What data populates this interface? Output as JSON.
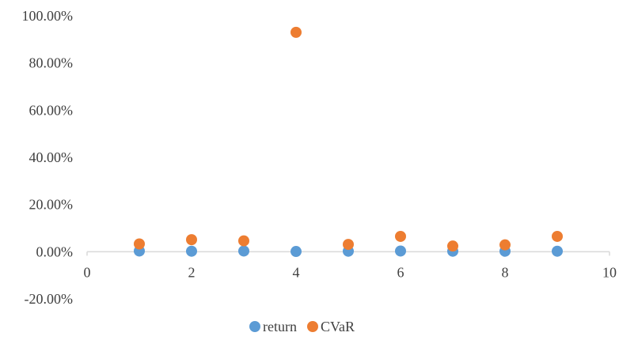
{
  "chart_data": {
    "type": "scatter",
    "title": "",
    "xlabel": "",
    "ylabel": "",
    "xlim": [
      0,
      10
    ],
    "ylim": [
      -0.2,
      1.0
    ],
    "x_ticks": [
      0,
      2,
      4,
      6,
      8,
      10
    ],
    "y_ticks": [
      -0.2,
      0.0,
      0.2,
      0.4,
      0.6,
      0.8,
      1.0
    ],
    "x_tick_labels": [
      "0",
      "2",
      "4",
      "6",
      "8",
      "10"
    ],
    "y_tick_labels": [
      "-20.00%",
      "0.00%",
      "20.00%",
      "40.00%",
      "60.00%",
      "80.00%",
      "100.00%"
    ],
    "grid": false,
    "legend_position": "bottom",
    "series": [
      {
        "name": "return",
        "color": "#5b9bd5",
        "x": [
          1,
          2,
          3,
          4,
          5,
          6,
          7,
          8,
          9
        ],
        "y": [
          0.003,
          0.002,
          0.003,
          0.001,
          0.002,
          0.003,
          0.002,
          0.002,
          0.002
        ]
      },
      {
        "name": "CVaR",
        "color": "#ed7d31",
        "x": [
          1,
          2,
          3,
          4,
          5,
          6,
          7,
          8,
          9
        ],
        "y": [
          0.033,
          0.051,
          0.046,
          0.93,
          0.031,
          0.065,
          0.024,
          0.029,
          0.065
        ]
      }
    ]
  }
}
